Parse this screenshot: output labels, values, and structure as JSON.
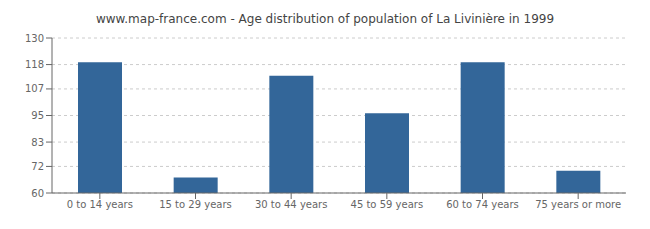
{
  "chart_data": {
    "type": "bar",
    "title": "www.map-france.com - Age distribution of population of La Livinière in 1999",
    "categories": [
      "0 to 14 years",
      "15 to 29 years",
      "30 to 44 years",
      "45 to 59 years",
      "60 to 74 years",
      "75 years or more"
    ],
    "values": [
      119,
      67,
      113,
      96,
      119,
      70
    ],
    "color": "#336699",
    "ylim": [
      60,
      130
    ],
    "yticks": [
      60,
      72,
      83,
      95,
      107,
      118,
      130
    ],
    "grid": true
  }
}
